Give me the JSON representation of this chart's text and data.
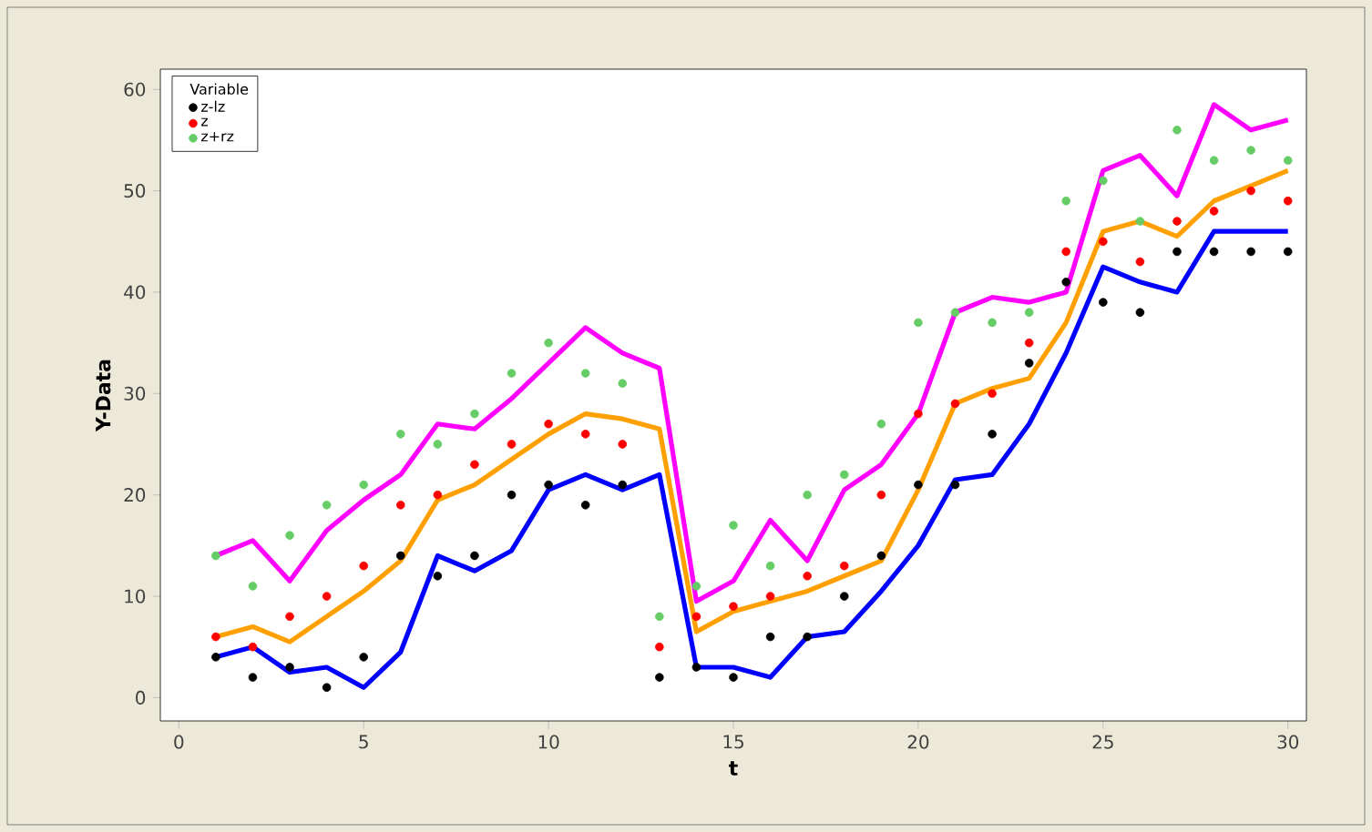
{
  "chart_data": {
    "type": "scatter",
    "xlabel": "t",
    "ylabel": "Y-Data",
    "legend_title": "Variable",
    "legend": "top left",
    "x": [
      1,
      2,
      3,
      4,
      5,
      6,
      7,
      8,
      9,
      10,
      11,
      12,
      13,
      14,
      15,
      16,
      17,
      18,
      19,
      20,
      21,
      22,
      23,
      24,
      25,
      26,
      27,
      28,
      29,
      30
    ],
    "xlim": [
      -0.5,
      30.5
    ],
    "xticks": [
      0,
      5,
      10,
      15,
      20,
      25,
      30
    ],
    "ylim": [
      -2.3,
      62
    ],
    "yticks": [
      0,
      10,
      20,
      30,
      40,
      50,
      60
    ],
    "series": [
      {
        "name": "z-lz",
        "marker": "circle",
        "color": "#000000",
        "values": [
          4,
          2,
          3,
          1,
          4,
          14,
          12,
          14,
          20,
          21,
          19,
          21,
          2,
          3,
          2,
          6,
          6,
          10,
          14,
          21,
          21,
          26,
          33,
          41,
          39,
          38,
          44,
          44,
          44,
          44
        ]
      },
      {
        "name": "z",
        "marker": "circle",
        "color": "#ff0000",
        "values": [
          6,
          5,
          8,
          10,
          13,
          19,
          20,
          23,
          25,
          27,
          26,
          25,
          5,
          8,
          9,
          10,
          12,
          13,
          20,
          28,
          29,
          30,
          35,
          44,
          45,
          43,
          47,
          48,
          50,
          49
        ]
      },
      {
        "name": "z+rz",
        "marker": "circle",
        "color": "#66cc66",
        "values": [
          14,
          11,
          16,
          19,
          21,
          26,
          25,
          28,
          32,
          35,
          32,
          31,
          8,
          11,
          17,
          13,
          20,
          22,
          27,
          37,
          38,
          37,
          38,
          49,
          51,
          47,
          56,
          53,
          54,
          53
        ]
      },
      {
        "type": "line",
        "marker": "none",
        "color": "#ff00ff",
        "values": [
          14,
          15.5,
          11.5,
          16.5,
          19.5,
          22,
          27,
          26.5,
          29.5,
          33,
          36.5,
          34,
          32.5,
          9.5,
          11.5,
          17.5,
          13.5,
          20.5,
          23,
          28,
          38,
          39.5,
          39,
          40,
          52,
          53.5,
          49.5,
          58.5,
          56,
          57
        ]
      },
      {
        "type": "line",
        "marker": "none",
        "color": "#ffa000",
        "values": [
          6,
          7,
          5.5,
          8,
          10.5,
          13.5,
          19.5,
          21,
          23.5,
          26,
          28,
          27.5,
          26.5,
          6.5,
          8.5,
          9.5,
          10.5,
          12,
          13.5,
          20.5,
          29,
          30.5,
          31.5,
          37,
          46,
          47,
          45.5,
          49,
          50.5,
          52
        ]
      },
      {
        "type": "line",
        "marker": "none",
        "color": "#0000ff",
        "values": [
          4,
          5,
          2.5,
          3,
          1,
          4.5,
          14,
          12.5,
          14.5,
          20.5,
          22,
          20.5,
          22,
          3,
          3,
          2,
          6,
          6.5,
          10.5,
          15,
          21.5,
          22,
          27,
          34,
          42.5,
          41,
          40,
          46,
          46,
          46
        ]
      }
    ]
  }
}
